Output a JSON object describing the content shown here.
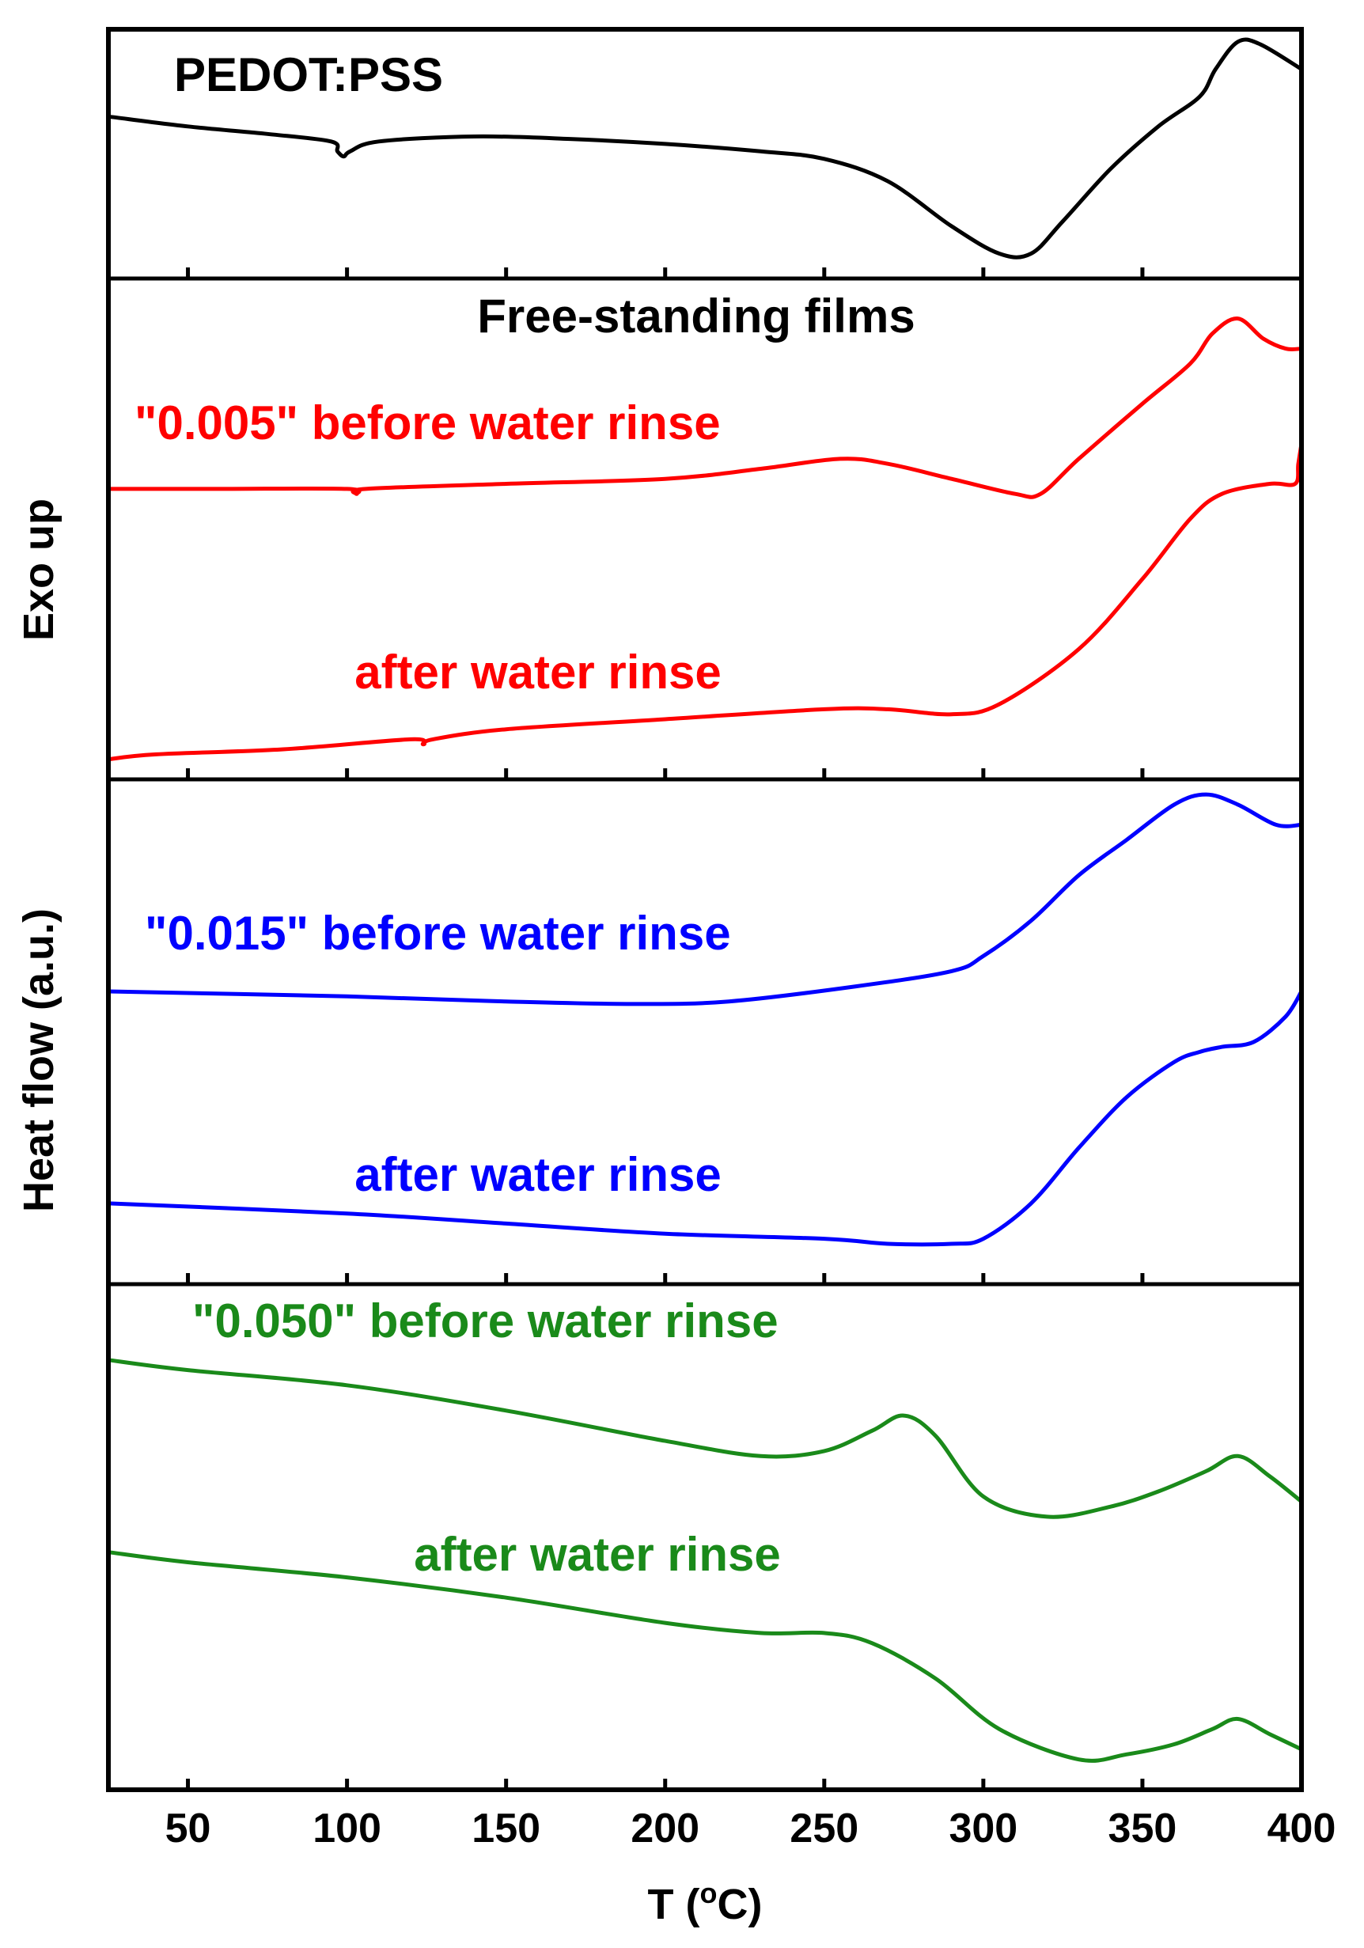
{
  "chart_data": {
    "type": "line",
    "xlabel": "T (oC)",
    "ylabel_top": "Exo up",
    "ylabel_bottom": "Heat flow (a.u.)",
    "xlim": [
      25,
      400
    ],
    "xticks": [
      50,
      100,
      150,
      200,
      250,
      300,
      350,
      400
    ],
    "y_units": "relative heat flow (a.u., 0 = panel bottom, 1 = panel top)",
    "panels": [
      {
        "name": "pedot-pss-panel",
        "title": "PEDOT:PSS",
        "series": [
          {
            "name": "PEDOT:PSS",
            "label": "",
            "color": "#000000",
            "x": [
              25,
              50,
              75,
              95,
              97,
              99,
              101,
              110,
              140,
              170,
              200,
              230,
              250,
              270,
              290,
              305,
              315,
              325,
              340,
              355,
              368,
              373,
              380,
              387,
              400
            ],
            "y": [
              0.65,
              0.61,
              0.58,
              0.55,
              0.51,
              0.49,
              0.51,
              0.55,
              0.57,
              0.56,
              0.54,
              0.51,
              0.48,
              0.39,
              0.21,
              0.1,
              0.1,
              0.23,
              0.44,
              0.61,
              0.73,
              0.84,
              0.95,
              0.94,
              0.84
            ]
          }
        ]
      },
      {
        "name": "free-standing-0005-panel",
        "title": "Free-standing films",
        "series": [
          {
            "name": "0.005 before water rinse",
            "label": "\"0.005\" before water rinse",
            "color": "#ff0000",
            "x": [
              25,
              60,
              100,
              103,
              106,
              150,
              200,
              230,
              255,
              270,
              290,
              310,
              318,
              330,
              350,
              365,
              372,
              380,
              388,
              395,
              400
            ],
            "y": [
              0.58,
              0.58,
              0.58,
              0.57,
              0.58,
              0.59,
              0.6,
              0.62,
              0.64,
              0.63,
              0.6,
              0.57,
              0.57,
              0.64,
              0.75,
              0.83,
              0.89,
              0.92,
              0.88,
              0.86,
              0.86
            ]
          },
          {
            "name": "0.005 after water rinse",
            "label": "after water rinse",
            "color": "#ff0000",
            "x": [
              25,
              40,
              80,
              120,
              124,
              127,
              150,
              200,
              250,
              270,
              290,
              305,
              330,
              350,
              365,
              375,
              390,
              398,
              399,
              400
            ],
            "y": [
              0.04,
              0.05,
              0.06,
              0.08,
              0.07,
              0.08,
              0.1,
              0.12,
              0.14,
              0.14,
              0.13,
              0.15,
              0.26,
              0.4,
              0.52,
              0.57,
              0.59,
              0.59,
              0.63,
              0.67
            ]
          }
        ]
      },
      {
        "name": "free-standing-0015-panel",
        "title": "",
        "series": [
          {
            "name": "0.015 before water rinse",
            "label": "\"0.015\" before water rinse",
            "color": "#0000ff",
            "x": [
              25,
              100,
              150,
              190,
              220,
              260,
              290,
              300,
              315,
              330,
              345,
              360,
              370,
              380,
              392,
              400
            ],
            "y": [
              0.58,
              0.57,
              0.56,
              0.555,
              0.56,
              0.59,
              0.62,
              0.65,
              0.72,
              0.81,
              0.88,
              0.95,
              0.97,
              0.95,
              0.91,
              0.91
            ]
          },
          {
            "name": "0.015 after water rinse",
            "label": "after water rinse",
            "color": "#0000ff",
            "x": [
              25,
              100,
              150,
              200,
              250,
              270,
              290,
              300,
              315,
              330,
              345,
              360,
              368,
              375,
              385,
              395,
              400
            ],
            "y": [
              0.16,
              0.14,
              0.12,
              0.1,
              0.09,
              0.08,
              0.08,
              0.09,
              0.16,
              0.27,
              0.37,
              0.44,
              0.46,
              0.47,
              0.48,
              0.53,
              0.58
            ]
          }
        ]
      },
      {
        "name": "free-standing-0050-panel",
        "title": "",
        "series": [
          {
            "name": "0.050 before water rinse",
            "label": "\"0.050\" before water rinse",
            "color": "#1a8a1a",
            "x": [
              25,
              50,
              100,
              150,
              200,
              230,
              250,
              265,
              275,
              285,
              300,
              320,
              340,
              355,
              370,
              380,
              390,
              400
            ],
            "y": [
              0.85,
              0.83,
              0.8,
              0.75,
              0.69,
              0.66,
              0.67,
              0.71,
              0.74,
              0.7,
              0.58,
              0.54,
              0.56,
              0.59,
              0.63,
              0.66,
              0.62,
              0.57
            ]
          },
          {
            "name": "0.050 after water rinse",
            "label": "after water rinse",
            "color": "#1a8a1a",
            "x": [
              25,
              50,
              100,
              150,
              200,
              230,
              250,
              265,
              285,
              305,
              330,
              345,
              360,
              372,
              380,
              390,
              400
            ],
            "y": [
              0.47,
              0.45,
              0.42,
              0.38,
              0.33,
              0.31,
              0.31,
              0.29,
              0.22,
              0.12,
              0.06,
              0.07,
              0.09,
              0.12,
              0.14,
              0.11,
              0.08
            ]
          }
        ]
      }
    ]
  }
}
